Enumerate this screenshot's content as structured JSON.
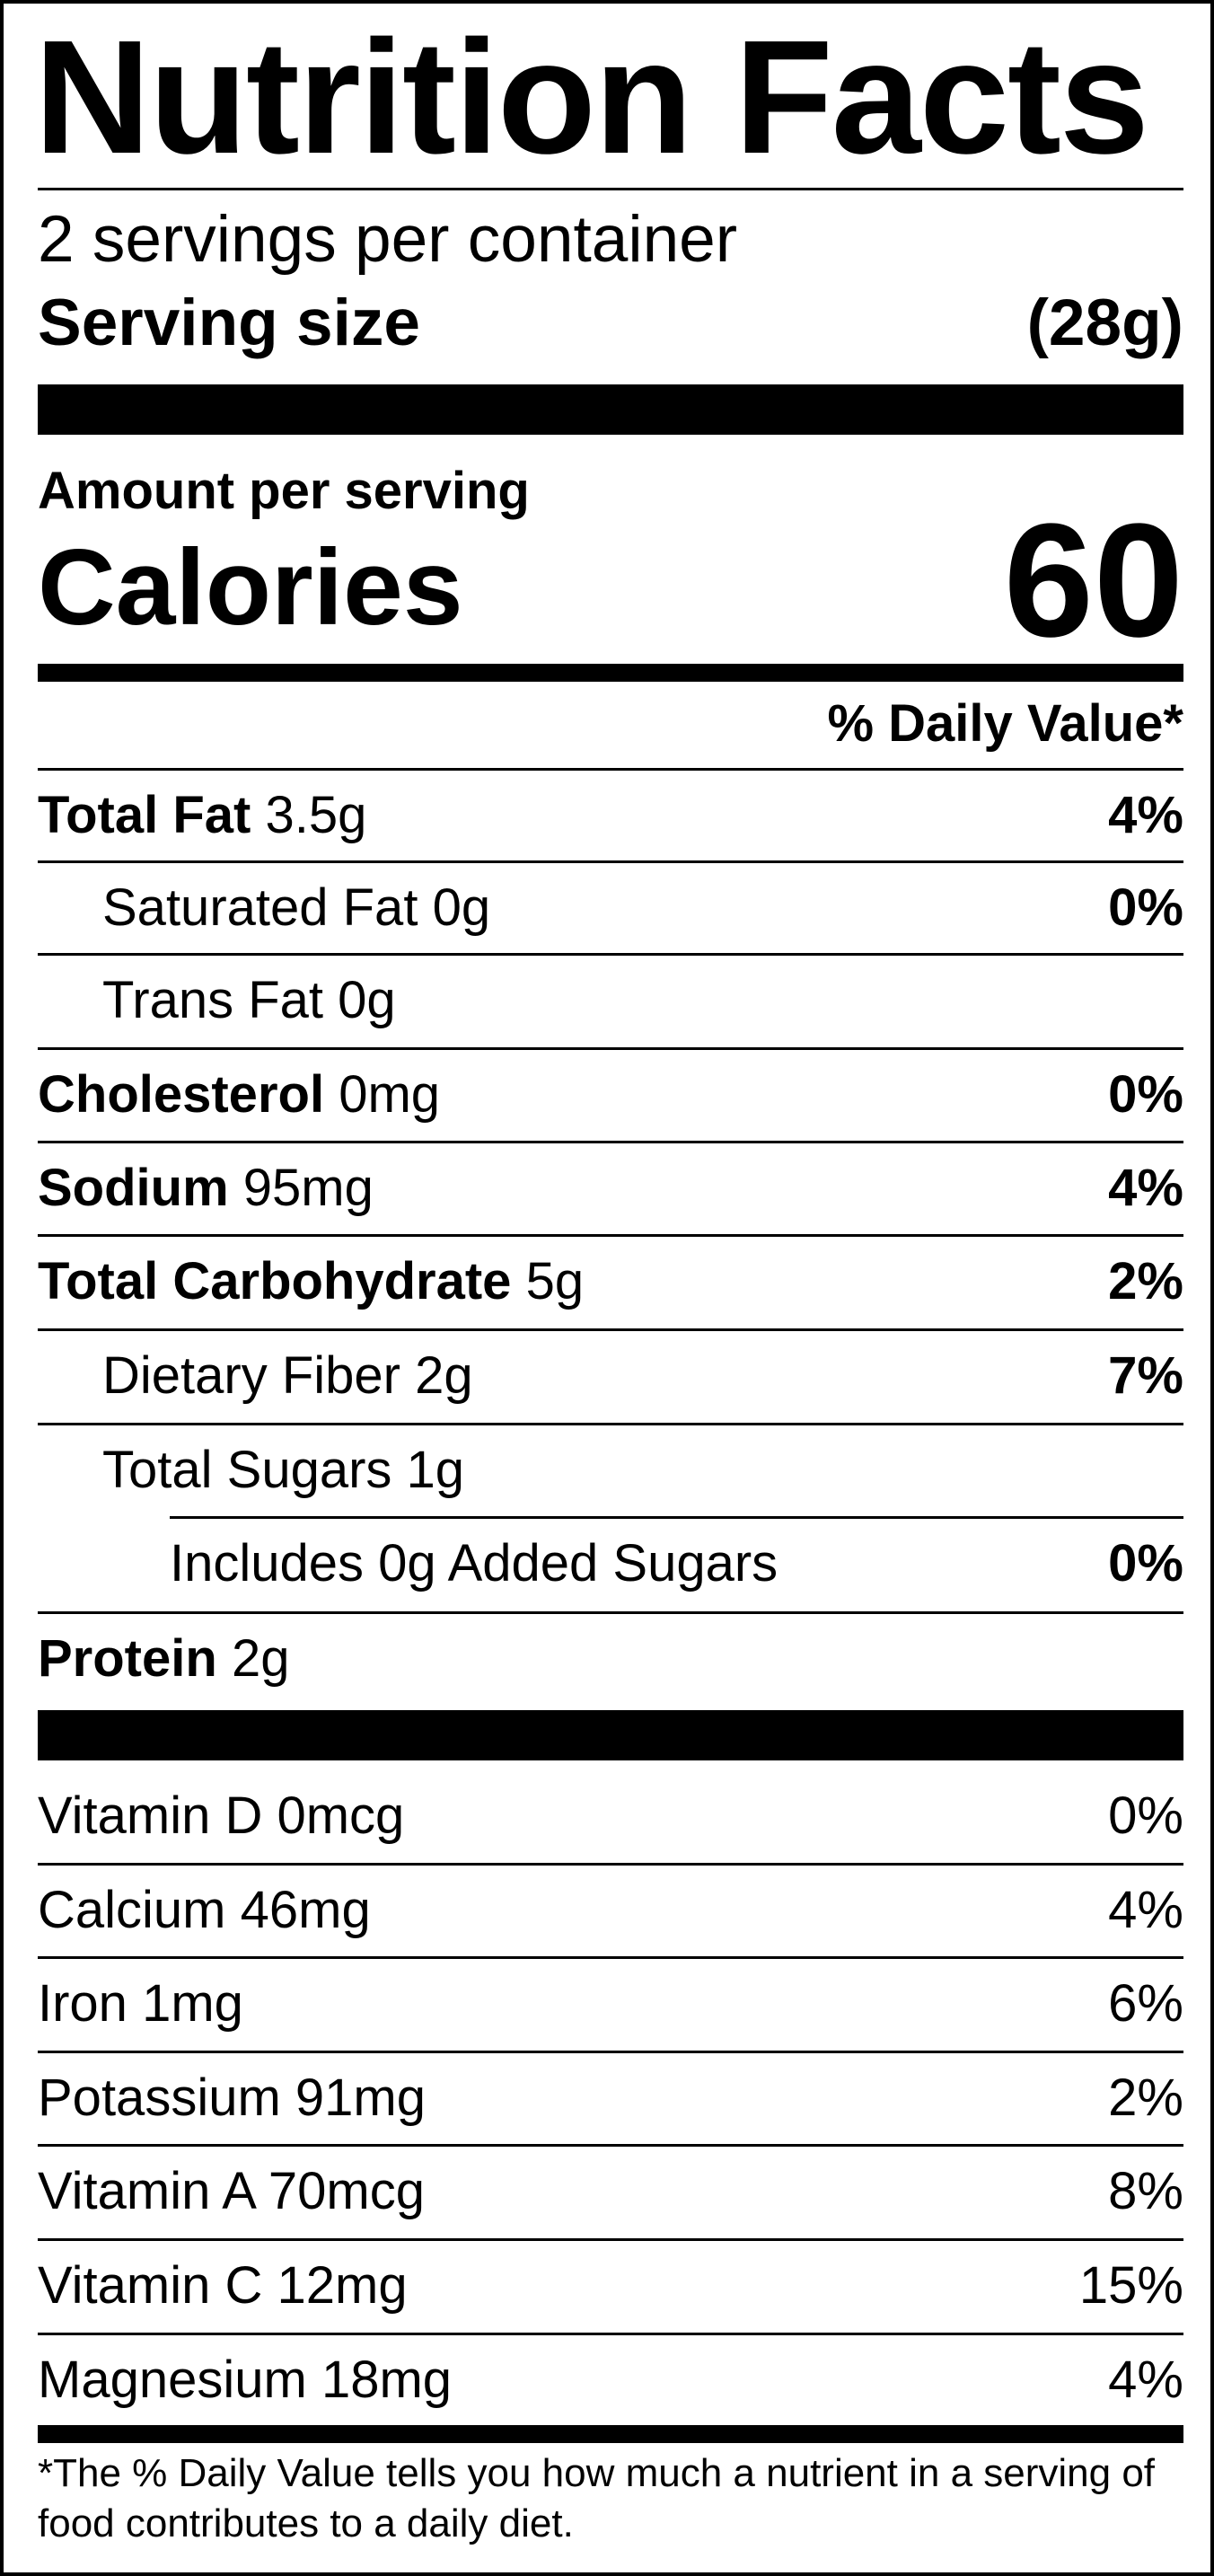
{
  "title": "Nutrition Facts",
  "servings_per_container": "2 servings per container",
  "serving_size": {
    "label": "Serving size",
    "value": "(28g)"
  },
  "amount_per_serving": "Amount per serving",
  "calories": {
    "label": "Calories",
    "value": "60"
  },
  "daily_value_header": "% Daily Value*",
  "nutrients": [
    {
      "name": "Total Fat",
      "amount": "3.5g",
      "dv": "4%"
    },
    {
      "name": "Saturated Fat",
      "amount": "0g",
      "dv": "0%"
    },
    {
      "name": "Trans Fat",
      "amount": "0g",
      "dv": ""
    },
    {
      "name": "Cholesterol",
      "amount": "0mg",
      "dv": "0%"
    },
    {
      "name": "Sodium",
      "amount": "95mg",
      "dv": "4%"
    },
    {
      "name": "Total Carbohydrate",
      "amount": "5g",
      "dv": "2%"
    },
    {
      "name": "Dietary Fiber",
      "amount": "2g",
      "dv": "7%"
    },
    {
      "name": "Total Sugars",
      "amount": "1g",
      "dv": ""
    },
    {
      "name": "Includes 0g Added Sugars",
      "amount": "",
      "dv": "0%"
    },
    {
      "name": "Protein",
      "amount": "2g",
      "dv": ""
    }
  ],
  "vitamins": [
    {
      "name": "Vitamin D",
      "amount": "0mcg",
      "dv": "0%"
    },
    {
      "name": "Calcium",
      "amount": "46mg",
      "dv": "4%"
    },
    {
      "name": "Iron",
      "amount": "1mg",
      "dv": "6%"
    },
    {
      "name": "Potassium",
      "amount": "91mg",
      "dv": "2%"
    },
    {
      "name": "Vitamin A",
      "amount": "70mcg",
      "dv": "8%"
    },
    {
      "name": "Vitamin C",
      "amount": "12mg",
      "dv": "15%"
    },
    {
      "name": "Magnesium",
      "amount": "18mg",
      "dv": "4%"
    }
  ],
  "footnote": "*The % Daily Value tells you how much a nutrient in a serving of food contributes to a daily diet."
}
